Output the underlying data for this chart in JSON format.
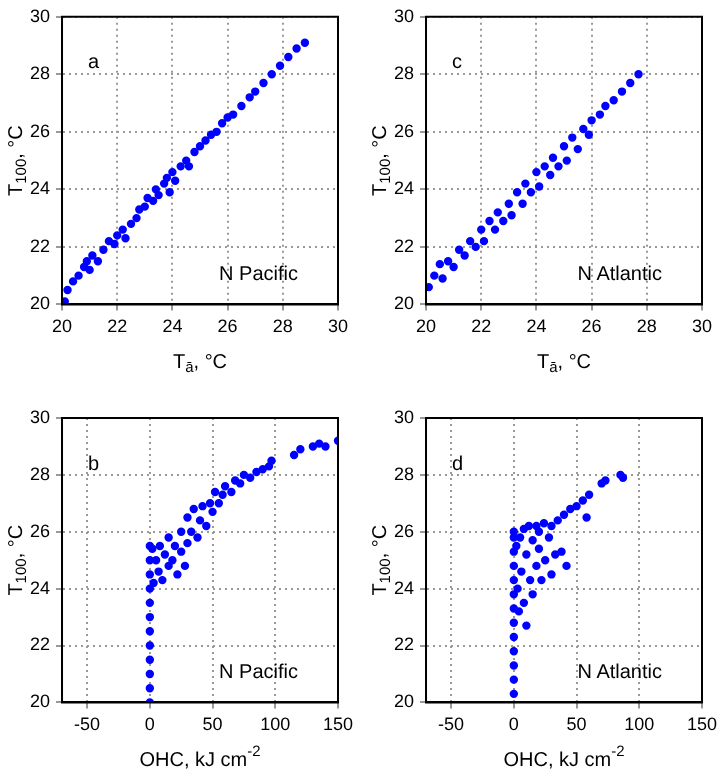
{
  "chart_data": [
    {
      "type": "scatter",
      "xlabel": "T$_{ā}$, °C",
      "ylabel": "T$_{100}$, °C",
      "xlim": [
        20,
        30
      ],
      "xticks": [
        20,
        22,
        24,
        26,
        28,
        30
      ],
      "ylim": [
        20,
        30
      ],
      "yticks": [
        20,
        22,
        24,
        26,
        28,
        30
      ],
      "grid": true,
      "marker": "circle",
      "annotations": [
        "a",
        "N Pacific"
      ],
      "color": "#0000ff",
      "x": [
        20.1,
        20.2,
        20.4,
        20.6,
        20.8,
        20.9,
        21.0,
        21.1,
        21.3,
        21.5,
        21.7,
        21.9,
        22.0,
        22.2,
        22.3,
        22.5,
        22.7,
        22.8,
        23.0,
        23.1,
        23.3,
        23.4,
        23.5,
        23.7,
        23.8,
        23.9,
        24.0,
        24.1,
        24.3,
        24.5,
        24.6,
        24.8,
        25.0,
        25.2,
        25.4,
        25.6,
        25.8,
        26.0,
        26.2,
        26.5,
        26.8,
        27.0,
        27.3,
        27.6,
        27.9,
        28.2,
        28.5,
        28.8
      ],
      "values": [
        20.1,
        20.5,
        20.8,
        21.0,
        21.3,
        21.5,
        21.2,
        21.7,
        21.5,
        21.9,
        22.2,
        22.1,
        22.4,
        22.6,
        22.3,
        22.8,
        23.0,
        23.3,
        23.4,
        23.7,
        23.6,
        24.0,
        23.8,
        24.2,
        24.4,
        23.9,
        24.6,
        24.3,
        24.8,
        25.0,
        24.8,
        25.3,
        25.5,
        25.7,
        25.9,
        26.0,
        26.3,
        26.5,
        26.6,
        26.9,
        27.2,
        27.4,
        27.7,
        28.0,
        28.3,
        28.6,
        28.9,
        29.1
      ]
    },
    {
      "type": "scatter",
      "xlabel": "T$_{ā}$, °C",
      "ylabel": "T$_{100}$, °C",
      "xlim": [
        20,
        30
      ],
      "xticks": [
        20,
        22,
        24,
        26,
        28,
        30
      ],
      "ylim": [
        20,
        30
      ],
      "yticks": [
        20,
        22,
        24,
        26,
        28,
        30
      ],
      "grid": true,
      "marker": "circle",
      "annotations": [
        "c",
        "N Atlantic"
      ],
      "color": "#0000ff",
      "x": [
        20.1,
        20.3,
        20.5,
        20.6,
        20.8,
        21.0,
        21.2,
        21.4,
        21.6,
        21.8,
        22.0,
        22.1,
        22.3,
        22.5,
        22.6,
        22.8,
        23.0,
        23.1,
        23.3,
        23.5,
        23.6,
        23.8,
        24.0,
        24.1,
        24.3,
        24.5,
        24.6,
        24.8,
        25.0,
        25.1,
        25.3,
        25.5,
        25.7,
        25.9,
        26.0,
        26.3,
        26.5,
        26.8,
        27.1,
        27.4,
        27.7
      ],
      "values": [
        20.6,
        21.0,
        21.4,
        20.9,
        21.5,
        21.3,
        21.9,
        21.7,
        22.2,
        22.0,
        22.6,
        22.2,
        22.9,
        22.6,
        23.2,
        22.9,
        23.5,
        23.1,
        23.9,
        23.5,
        24.2,
        23.9,
        24.6,
        24.1,
        24.8,
        24.5,
        25.1,
        24.8,
        25.5,
        25.0,
        25.8,
        25.4,
        26.1,
        25.9,
        26.4,
        26.6,
        26.9,
        27.1,
        27.4,
        27.7,
        28.0
      ]
    },
    {
      "type": "scatter",
      "xlabel": "OHC, kJ cm$^{-2}$",
      "ylabel": "T$_{100}$, °C",
      "xlim": [
        -70,
        150
      ],
      "xticks": [
        -50,
        0,
        50,
        100,
        150
      ],
      "ylim": [
        20,
        30
      ],
      "yticks": [
        20,
        22,
        24,
        26,
        28,
        30
      ],
      "grid": true,
      "marker": "circle",
      "annotations": [
        "b",
        "N Pacific"
      ],
      "color": "#0000ff",
      "x": [
        0,
        0,
        0,
        0,
        0,
        0,
        0,
        0,
        0,
        0,
        0,
        0,
        2,
        3,
        5,
        7,
        8,
        10,
        12,
        15,
        15,
        18,
        20,
        22,
        25,
        25,
        28,
        30,
        30,
        33,
        35,
        38,
        40,
        42,
        45,
        48,
        50,
        52,
        55,
        58,
        60,
        65,
        68,
        72,
        75,
        80,
        85,
        90,
        95,
        97,
        115,
        120,
        130,
        135,
        140,
        150
      ],
      "values": [
        20.0,
        20.5,
        21.0,
        21.5,
        22.0,
        22.5,
        23.0,
        23.5,
        24.0,
        24.5,
        25.0,
        25.5,
        25.4,
        24.2,
        25.0,
        24.6,
        25.5,
        24.3,
        25.2,
        24.8,
        25.8,
        25.0,
        25.5,
        24.5,
        26.0,
        25.3,
        24.8,
        26.5,
        25.6,
        26.0,
        26.8,
        25.8,
        26.4,
        26.9,
        26.2,
        27.0,
        26.7,
        27.4,
        27.0,
        27.3,
        27.6,
        27.4,
        27.8,
        27.7,
        28.0,
        27.9,
        28.1,
        28.2,
        28.3,
        28.5,
        28.7,
        28.9,
        29.0,
        29.1,
        29.0,
        29.2
      ]
    },
    {
      "type": "scatter",
      "xlabel": "OHC, kJ cm$^{-2}$",
      "ylabel": "T$_{100}$, °C",
      "xlim": [
        -70,
        150
      ],
      "xticks": [
        -50,
        0,
        50,
        100,
        150
      ],
      "ylim": [
        20,
        30
      ],
      "yticks": [
        20,
        22,
        24,
        26,
        28,
        30
      ],
      "grid": true,
      "marker": "circle",
      "annotations": [
        "d",
        "N Atlantic"
      ],
      "color": "#0000ff",
      "x": [
        0,
        0,
        0,
        0,
        0,
        0,
        0,
        0,
        0,
        0,
        0,
        0,
        0,
        2,
        3,
        4,
        5,
        6,
        8,
        8,
        10,
        10,
        12,
        13,
        15,
        15,
        18,
        18,
        20,
        20,
        22,
        24,
        25,
        28,
        30,
        30,
        33,
        35,
        38,
        40,
        42,
        45,
        50,
        55,
        58,
        60,
        70,
        73,
        85,
        87
      ],
      "values": [
        20.3,
        20.8,
        21.3,
        21.8,
        22.3,
        22.8,
        23.3,
        23.8,
        24.3,
        24.8,
        25.3,
        25.8,
        26.0,
        25.5,
        24.0,
        23.2,
        25.8,
        24.6,
        26.1,
        23.5,
        25.2,
        22.7,
        26.2,
        24.3,
        25.7,
        23.8,
        26.2,
        24.8,
        25.4,
        26.0,
        24.3,
        26.3,
        25.0,
        25.8,
        24.5,
        26.2,
        25.2,
        26.4,
        25.3,
        26.6,
        24.8,
        26.8,
        26.9,
        27.1,
        26.5,
        27.3,
        27.7,
        27.8,
        28.0,
        27.9
      ]
    }
  ]
}
